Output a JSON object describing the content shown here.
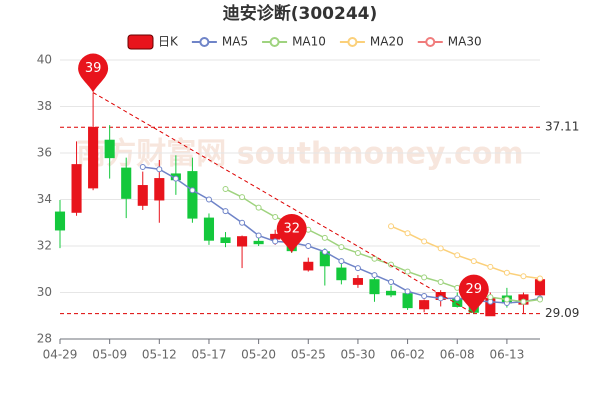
{
  "chart_data": {
    "type": "candlestick",
    "title": "迪安诊断(300244)",
    "watermark": "南方财富网 southmoney.com",
    "categories": [
      "04-29",
      null,
      null,
      "05-09",
      null,
      null,
      "05-12",
      null,
      null,
      "05-17",
      null,
      null,
      "05-20",
      null,
      null,
      "05-25",
      null,
      null,
      "05-30",
      null,
      null,
      "06-02",
      null,
      null,
      "06-08",
      null,
      null,
      "06-13",
      null,
      null
    ],
    "series": [
      {
        "name": "日K",
        "up_color": "#e8141c",
        "down_color": "#14c83c",
        "open": [
          33.46,
          33.45,
          34.5,
          36.55,
          35.35,
          33.75,
          33.98,
          35.1,
          35.2,
          33.2,
          32.35,
          32.0,
          32.2,
          32.3,
          32.4,
          30.97,
          31.75,
          31.05,
          30.35,
          30.55,
          30.05,
          29.95,
          29.3,
          29.7,
          29.75,
          29.65,
          29.0,
          29.85,
          29.5,
          29.9
        ],
        "high": [
          33.98,
          36.5,
          38.6,
          37.2,
          35.8,
          35.2,
          35.7,
          35.9,
          35.8,
          33.4,
          32.6,
          32.45,
          32.45,
          32.7,
          32.7,
          31.5,
          31.9,
          31.3,
          30.75,
          30.75,
          30.3,
          30.1,
          29.7,
          30.1,
          30.0,
          29.8,
          30.0,
          30.2,
          30.0,
          30.6
        ],
        "low": [
          31.91,
          33.3,
          34.4,
          34.9,
          33.2,
          33.55,
          33.0,
          34.2,
          33.0,
          32.05,
          31.95,
          31.05,
          32.0,
          32.05,
          31.7,
          30.9,
          30.3,
          30.35,
          30.2,
          29.6,
          29.8,
          29.25,
          29.15,
          29.4,
          29.35,
          29.09,
          29.1,
          29.35,
          29.12,
          29.85
        ],
        "close": [
          32.69,
          35.5,
          37.1,
          35.8,
          34.05,
          34.6,
          34.9,
          34.85,
          33.2,
          32.25,
          32.15,
          32.4,
          32.1,
          32.5,
          31.8,
          31.3,
          31.15,
          30.55,
          30.6,
          29.95,
          29.9,
          29.35,
          29.65,
          30.0,
          29.4,
          29.15,
          29.75,
          29.55,
          29.9,
          30.55
        ]
      }
    ],
    "ma_series": [
      {
        "name": "MA5",
        "color": "#6f84c8",
        "values": [
          null,
          null,
          null,
          null,
          null,
          35.4,
          35.3,
          34.9,
          34.4,
          34.0,
          33.5,
          33.0,
          32.45,
          32.2,
          32.15,
          32.0,
          31.75,
          31.35,
          31.05,
          30.75,
          30.45,
          30.05,
          29.85,
          29.75,
          29.75,
          29.65,
          29.6,
          29.55,
          29.6,
          29.75
        ]
      },
      {
        "name": "MA10",
        "color": "#9fd37f",
        "values": [
          null,
          null,
          null,
          null,
          null,
          null,
          null,
          null,
          null,
          null,
          34.45,
          34.1,
          33.65,
          33.25,
          32.95,
          32.7,
          32.35,
          31.95,
          31.7,
          31.45,
          31.2,
          30.9,
          30.65,
          30.45,
          30.2,
          29.95,
          29.8,
          29.7,
          29.6,
          29.7
        ]
      },
      {
        "name": "MA20",
        "color": "#fbd07a",
        "values": [
          null,
          null,
          null,
          null,
          null,
          null,
          null,
          null,
          null,
          null,
          null,
          null,
          null,
          null,
          null,
          null,
          null,
          null,
          null,
          null,
          32.85,
          32.55,
          32.2,
          31.9,
          31.6,
          31.35,
          31.1,
          30.85,
          30.7,
          30.6
        ]
      },
      {
        "name": "MA30",
        "color": "#f07c7c",
        "values": [
          null,
          null,
          null,
          null,
          null,
          null,
          null,
          null,
          null,
          null,
          null,
          null,
          null,
          null,
          null,
          null,
          null,
          null,
          null,
          null,
          null,
          null,
          null,
          null,
          null,
          null,
          null,
          null,
          null,
          null
        ]
      }
    ],
    "ylim": [
      28,
      40
    ],
    "yticks": [
      28,
      30,
      32,
      34,
      36,
      38,
      40
    ],
    "grid": true,
    "mark_lines": [
      37.11,
      29.09
    ],
    "annotations": [
      {
        "label": "39",
        "value": 38.6
      },
      {
        "label": "32",
        "value": 31.7
      },
      {
        "label": "29",
        "value": 29.09
      }
    ]
  }
}
